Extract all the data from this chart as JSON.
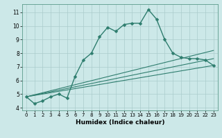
{
  "title": "",
  "xlabel": "Humidex (Indice chaleur)",
  "ylabel": "",
  "background_color": "#cce8e8",
  "grid_color": "#aacccc",
  "line_color": "#2e7d6e",
  "xlim": [
    -0.5,
    23.5
  ],
  "ylim": [
    3.8,
    11.6
  ],
  "xticks": [
    0,
    1,
    2,
    3,
    4,
    5,
    6,
    7,
    8,
    9,
    10,
    11,
    12,
    13,
    14,
    15,
    16,
    17,
    18,
    19,
    20,
    21,
    22,
    23
  ],
  "yticks": [
    4,
    5,
    6,
    7,
    8,
    9,
    10,
    11
  ],
  "series": [
    {
      "x": [
        0,
        1,
        2,
        3,
        4,
        5,
        6,
        7,
        8,
        9,
        10,
        11,
        12,
        13,
        14,
        15,
        16,
        17,
        18,
        19,
        20,
        21,
        22,
        23
      ],
      "y": [
        4.8,
        4.3,
        4.5,
        4.8,
        5.0,
        4.7,
        6.3,
        7.5,
        8.0,
        9.2,
        9.9,
        9.6,
        10.1,
        10.2,
        10.2,
        11.2,
        10.5,
        9.0,
        8.0,
        7.7,
        7.6,
        7.6,
        7.5,
        7.1
      ],
      "marker": "D",
      "markersize": 2.5,
      "linewidth": 1.0
    },
    {
      "x": [
        0,
        23
      ],
      "y": [
        4.8,
        7.1
      ],
      "marker": null,
      "linewidth": 0.8
    },
    {
      "x": [
        0,
        23
      ],
      "y": [
        4.8,
        7.6
      ],
      "marker": null,
      "linewidth": 0.8
    },
    {
      "x": [
        0,
        23
      ],
      "y": [
        4.8,
        8.2
      ],
      "marker": null,
      "linewidth": 0.8
    }
  ]
}
